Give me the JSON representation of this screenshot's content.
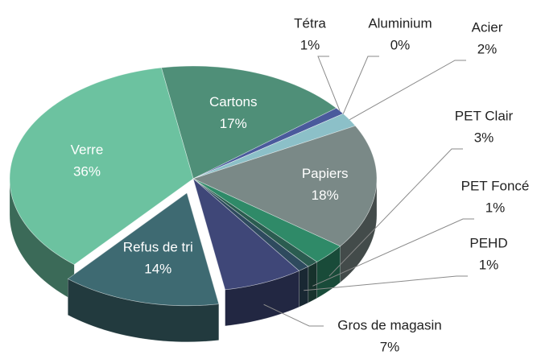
{
  "chart_data": {
    "type": "pie3d",
    "categories": [
      "Cartons",
      "Tétra",
      "Aluminium",
      "Acier",
      "Papiers",
      "PET Clair",
      "PET Foncé",
      "PEHD",
      "Gros de magasin",
      "Refus de tri",
      "Verre"
    ],
    "values": [
      17,
      1,
      0,
      2,
      18,
      3,
      1,
      1,
      7,
      14,
      36
    ],
    "value_labels": [
      "17%",
      "1%",
      "0%",
      "2%",
      "18%",
      "3%",
      "1%",
      "1%",
      "7%",
      "14%",
      "36%"
    ],
    "colors": [
      "#4f8f78",
      "#4a5a9c",
      "#9aa0a0",
      "#8cc0c8",
      "#7a8987",
      "#2f8a68",
      "#2b5c50",
      "#2e4a5e",
      "#3f4778",
      "#3e6a72",
      "#6cc2a0"
    ],
    "exploded": "Refus de tri"
  }
}
